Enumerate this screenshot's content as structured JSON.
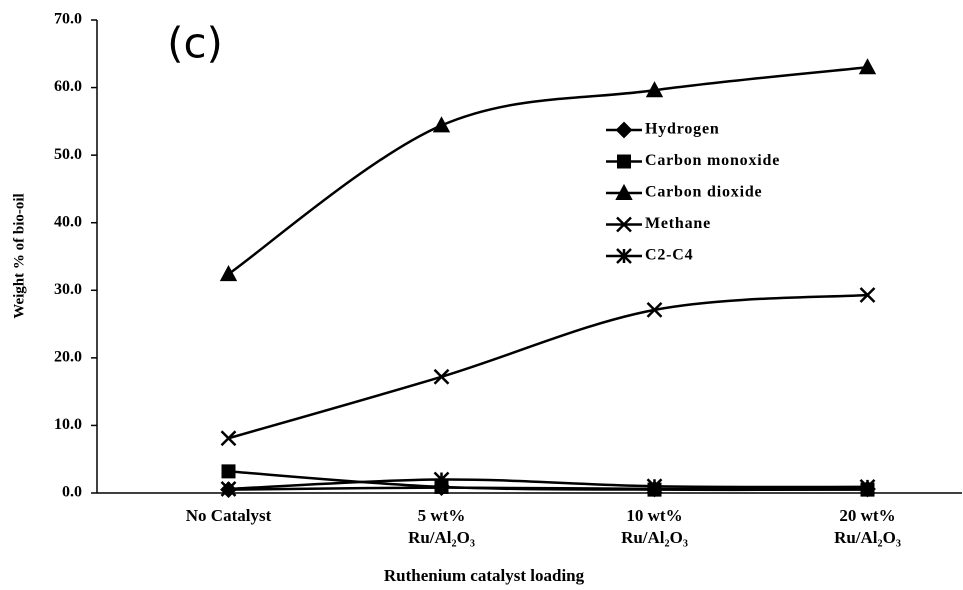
{
  "chart_data": {
    "type": "line",
    "annotation": "(c)",
    "x_label": "Ruthenium  catalyst loading",
    "y_label": "Weight  % of bio-oil",
    "categories": [
      "No Catalyst",
      "5 wt%\nRu/Al₂O₃",
      "10 wt%\nRu/Al₂O₃",
      "20 wt%\nRu/Al₂O₃"
    ],
    "series": [
      {
        "name": "Hydrogen",
        "color": "#000000",
        "marker": "diamond",
        "values": [
          0.5,
          0.8,
          0.6,
          0.6
        ]
      },
      {
        "name": "Carbon monoxide",
        "color": "#000000",
        "marker": "square",
        "values": [
          3.2,
          0.9,
          0.5,
          0.5
        ]
      },
      {
        "name": "Carbon dioxide",
        "color": "#000000",
        "marker": "triangle",
        "values": [
          32.4,
          54.4,
          59.6,
          63.0
        ]
      },
      {
        "name": "Methane",
        "color": "#000000",
        "marker": "x",
        "values": [
          8.1,
          17.2,
          27.1,
          29.3
        ]
      },
      {
        "name": "C2-C4",
        "color": "#000000",
        "marker": "asterisk",
        "values": [
          0.6,
          2.0,
          1.0,
          0.9
        ]
      }
    ],
    "ylim": [
      0,
      70
    ],
    "yticks": [
      {
        "value": 0,
        "label": "0.0"
      },
      {
        "value": 10,
        "label": "10.0"
      },
      {
        "value": 20,
        "label": "20.0"
      },
      {
        "value": 30,
        "label": "30.0"
      },
      {
        "value": 40,
        "label": "40.0"
      },
      {
        "value": 50,
        "label": "50.0"
      },
      {
        "value": 60,
        "label": "60.0"
      },
      {
        "value": 70,
        "label": "70.0"
      }
    ],
    "smooth": true,
    "legend": "upper-right"
  }
}
